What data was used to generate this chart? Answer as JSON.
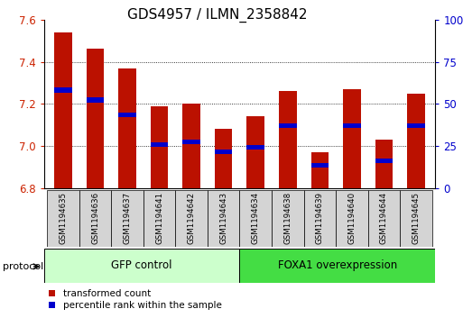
{
  "title": "GDS4957 / ILMN_2358842",
  "samples": [
    "GSM1194635",
    "GSM1194636",
    "GSM1194637",
    "GSM1194641",
    "GSM1194642",
    "GSM1194643",
    "GSM1194634",
    "GSM1194638",
    "GSM1194639",
    "GSM1194640",
    "GSM1194644",
    "GSM1194645"
  ],
  "bar_values": [
    7.54,
    7.46,
    7.37,
    7.19,
    7.2,
    7.08,
    7.14,
    7.26,
    6.97,
    7.27,
    7.03,
    7.25
  ],
  "blue_positions": [
    7.265,
    7.218,
    7.148,
    7.005,
    7.02,
    6.972,
    6.992,
    7.098,
    6.908,
    7.098,
    6.928,
    7.098
  ],
  "ymin": 6.8,
  "ymax": 7.6,
  "bar_color": "#bb1100",
  "blue_color": "#0000cc",
  "bar_width": 0.55,
  "group1_label": "GFP control",
  "group2_label": "FOXA1 overexpression",
  "group1_color": "#ccffcc",
  "group2_color": "#44dd44",
  "protocol_label": "protocol",
  "legend_red_label": "transformed count",
  "legend_blue_label": "percentile rank within the sample",
  "ytick_color": "#cc2200",
  "right_ytick_color": "#0000cc",
  "title_fontsize": 11
}
